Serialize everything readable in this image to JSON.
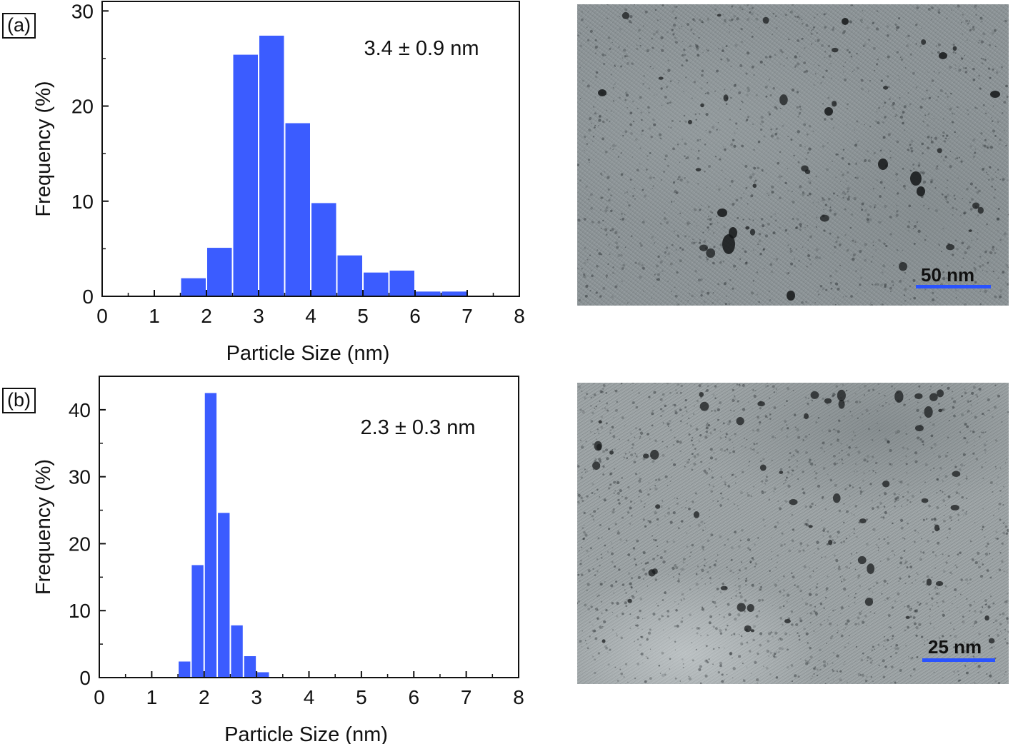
{
  "chart_data": [
    {
      "type": "bar",
      "panel_label": "(a)",
      "annotation": "3.4 ± 0.9 nm",
      "xlabel": "Particle Size (nm)",
      "ylabel": "Frequency (%)",
      "xlim": [
        0,
        8
      ],
      "ylim": [
        0,
        31
      ],
      "xticks": [
        "0",
        "1",
        "2",
        "3",
        "4",
        "5",
        "6",
        "7",
        "8"
      ],
      "yticks": [
        "0",
        "10",
        "20",
        "30"
      ],
      "bin_width": 0.5,
      "bars": [
        {
          "x": 1.75,
          "value": 1.9
        },
        {
          "x": 2.25,
          "value": 5.1
        },
        {
          "x": 2.75,
          "value": 25.4
        },
        {
          "x": 3.25,
          "value": 27.4
        },
        {
          "x": 3.75,
          "value": 18.2
        },
        {
          "x": 4.25,
          "value": 9.8
        },
        {
          "x": 4.75,
          "value": 4.3
        },
        {
          "x": 5.25,
          "value": 2.5
        },
        {
          "x": 5.75,
          "value": 2.7
        },
        {
          "x": 6.25,
          "value": 0.5
        },
        {
          "x": 6.75,
          "value": 0.5
        }
      ],
      "bar_color": "#3b5cff",
      "grid": false
    },
    {
      "type": "bar",
      "panel_label": "(b)",
      "annotation": "2.3 ± 0.3 nm",
      "xlabel": "Particle Size (nm)",
      "ylabel": "Frequency (%)",
      "xlim": [
        0,
        8
      ],
      "ylim": [
        0,
        45
      ],
      "xticks": [
        "0",
        "1",
        "2",
        "3",
        "4",
        "5",
        "6",
        "7",
        "8"
      ],
      "yticks": [
        "0",
        "10",
        "20",
        "30",
        "40"
      ],
      "bin_width": 0.25,
      "bars": [
        {
          "x": 1.625,
          "value": 2.4
        },
        {
          "x": 1.875,
          "value": 16.8
        },
        {
          "x": 2.125,
          "value": 42.5
        },
        {
          "x": 2.375,
          "value": 24.6
        },
        {
          "x": 2.625,
          "value": 7.8
        },
        {
          "x": 2.875,
          "value": 3.2
        },
        {
          "x": 3.125,
          "value": 0.8
        }
      ],
      "bar_color": "#3b5cff",
      "grid": false
    }
  ],
  "images": [
    {
      "name": "tem-image-a",
      "scale_bar_label": "50 nm",
      "scale_bar_color": "#2a53ff"
    },
    {
      "name": "tem-image-b",
      "scale_bar_label": "25 nm",
      "scale_bar_color": "#2a53ff"
    }
  ]
}
